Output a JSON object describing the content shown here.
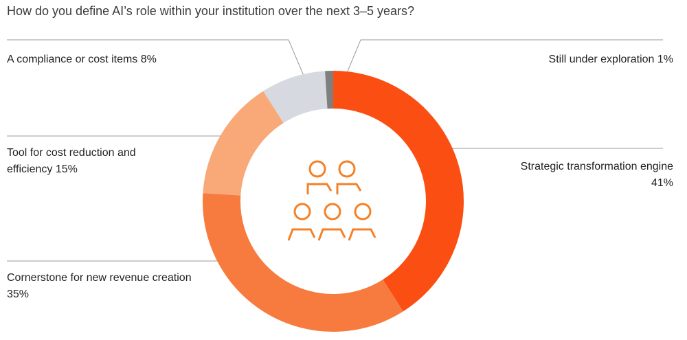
{
  "chart_data": {
    "type": "donut",
    "title": "How do you define AI’s role within your institution over the next 3–5 years?",
    "categories": [
      "Strategic transformation engine",
      "Cornerstone for new revenue creation",
      "Tool for cost reduction and efficiency",
      "A compliance or cost items",
      "Still under exploration"
    ],
    "values": [
      41,
      35,
      15,
      8,
      1
    ],
    "value_labels": [
      "41%",
      "35%",
      "15%",
      "8%",
      "1%"
    ],
    "colors": [
      "#fa4e12",
      "#f77b3e",
      "#f9a877",
      "#d6d9df",
      "#7f7f7f"
    ]
  }
}
